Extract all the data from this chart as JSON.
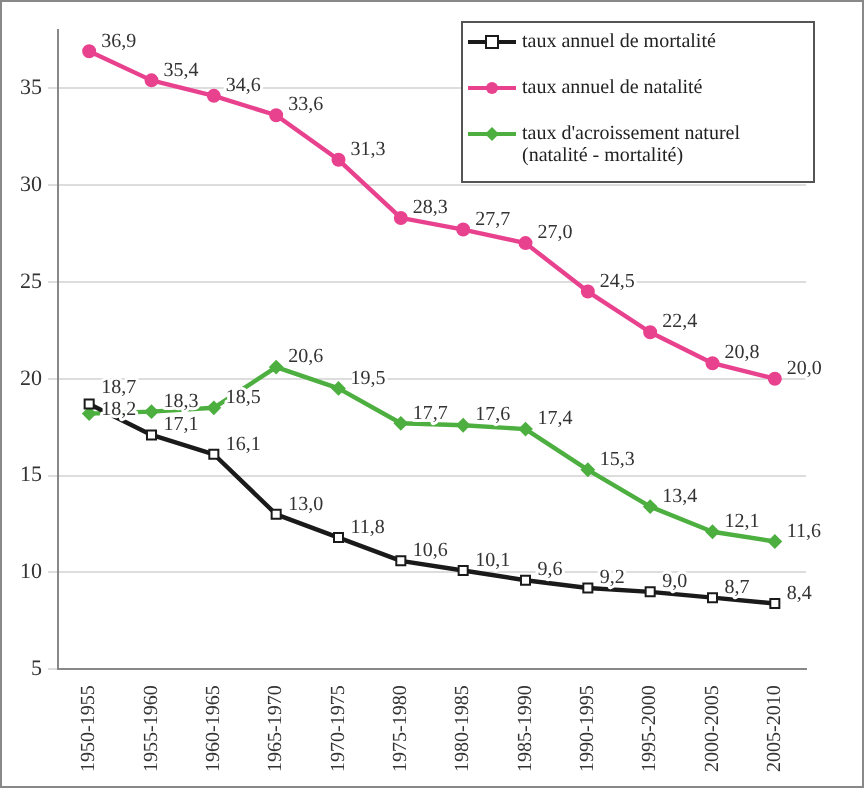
{
  "chart_data": {
    "type": "line",
    "categories": [
      "1950-1955",
      "1955-1960",
      "1960-1965",
      "1965-1970",
      "1970-1975",
      "1975-1980",
      "1980-1985",
      "1985-1990",
      "1990-1995",
      "1995-2000",
      "2000-2005",
      "2005-2010"
    ],
    "series": [
      {
        "name": "taux annuel de mortalité",
        "color": "#1a1a1a",
        "marker": "square",
        "values": [
          18.7,
          17.1,
          16.1,
          13.0,
          11.8,
          10.6,
          10.1,
          9.6,
          9.2,
          9.0,
          8.7,
          8.4
        ],
        "value_labels": [
          "18,7",
          "17,1",
          "16,1",
          "13,0",
          "11,8",
          "10,6",
          "10,1",
          "9,6",
          "9,2",
          "9,0",
          "8,7",
          "8,4"
        ]
      },
      {
        "name": "taux annuel de natalité",
        "color": "#e8428f",
        "marker": "circle",
        "values": [
          36.9,
          35.4,
          34.6,
          33.6,
          31.3,
          28.3,
          27.7,
          27.0,
          24.5,
          22.4,
          20.8,
          20.0
        ],
        "value_labels": [
          "36,9",
          "35,4",
          "34,6",
          "33,6",
          "31,3",
          "28,3",
          "27,7",
          "27,0",
          "24,5",
          "22,4",
          "20,8",
          "20,0"
        ]
      },
      {
        "name": "taux d'acroissement naturel (natalité - mortalité)",
        "color": "#4caf3f",
        "marker": "diamond",
        "values": [
          18.2,
          18.3,
          18.5,
          20.6,
          19.5,
          17.7,
          17.6,
          17.4,
          15.3,
          13.4,
          12.1,
          11.6
        ],
        "value_labels": [
          "18,2",
          "18,3",
          "18,5",
          "20,6",
          "19,5",
          "17,7",
          "17,6",
          "17,4",
          "15,3",
          "13,4",
          "12,1",
          "11,6"
        ]
      }
    ],
    "ylim": [
      5,
      38
    ],
    "yticks": [
      5,
      10,
      15,
      20,
      25,
      30,
      35
    ],
    "grid": "y",
    "legend": "top right",
    "line_style": "solid"
  }
}
